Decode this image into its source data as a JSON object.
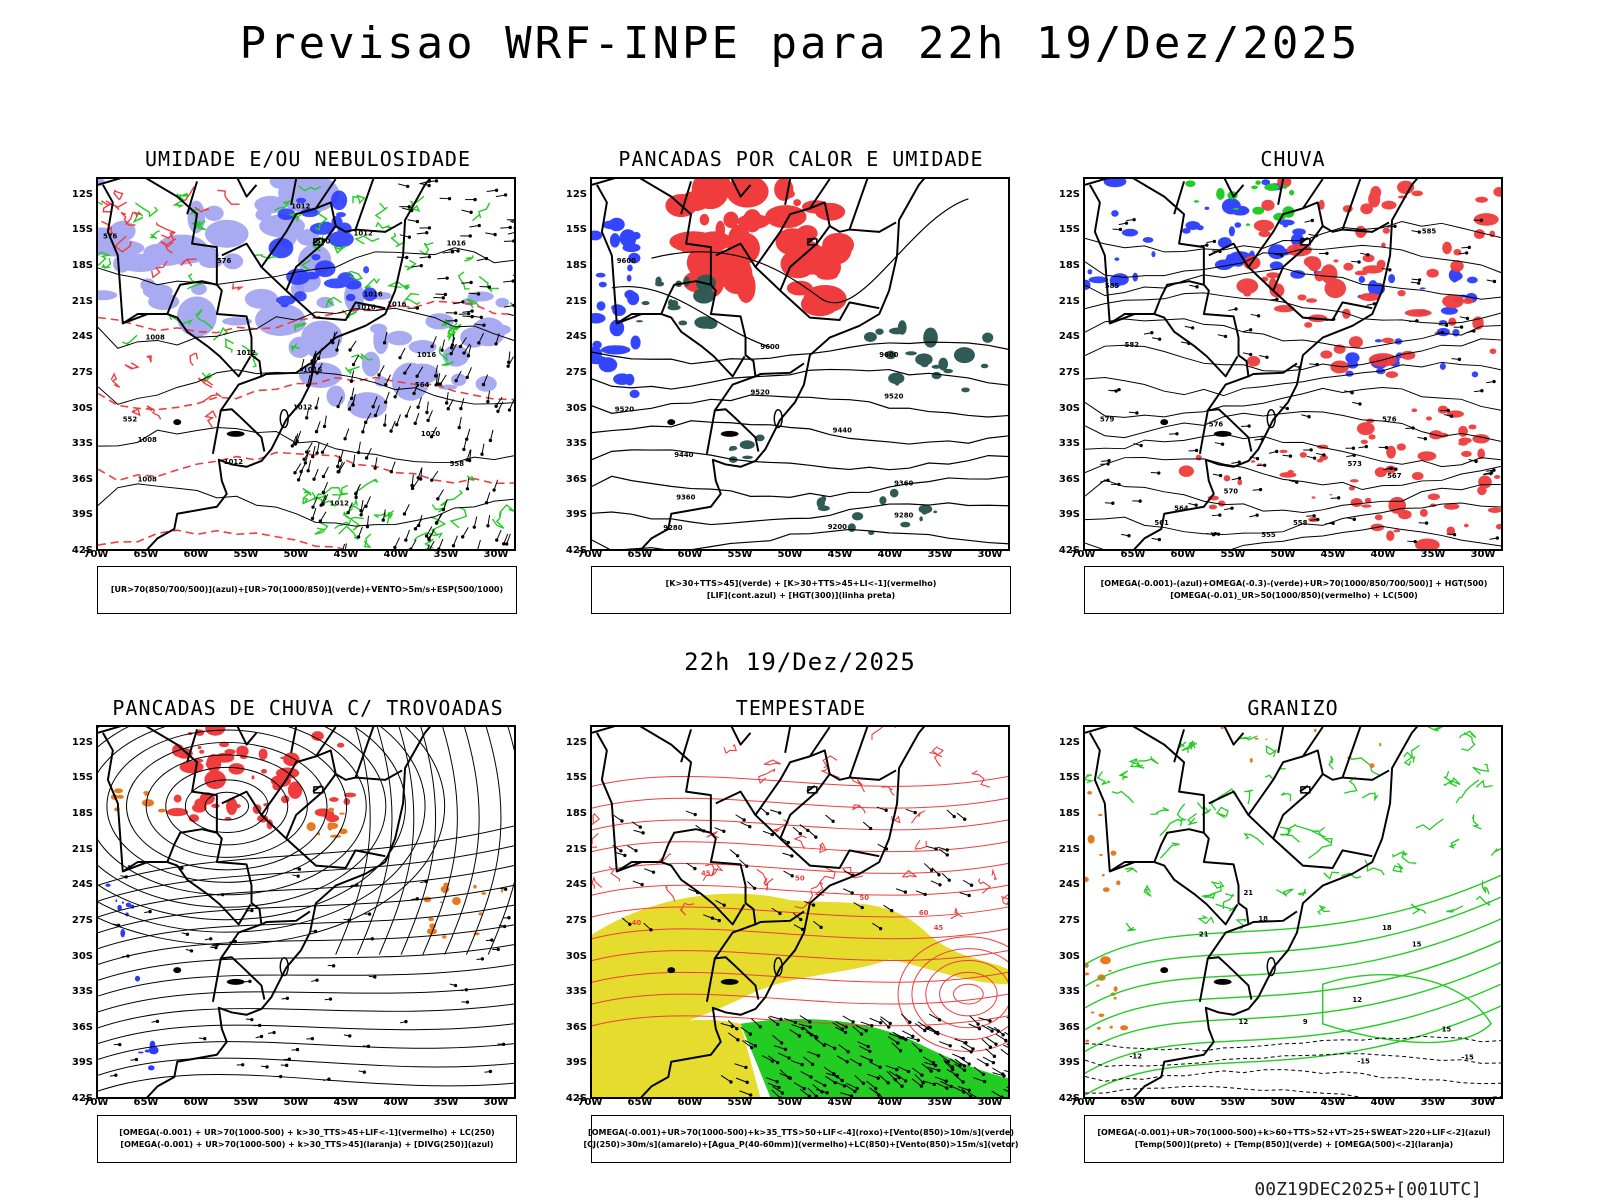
{
  "title": "Previsao WRF-INPE  para 22h 19/Dez/2025",
  "mid_date": "22h 19/Dez/2025",
  "run_stamp": "00Z19DEC2025+[001UTC]",
  "axis": {
    "lat_labels": [
      "12S",
      "15S",
      "18S",
      "21S",
      "24S",
      "27S",
      "30S",
      "33S",
      "36S",
      "39S",
      "42S"
    ],
    "lon_labels": [
      "70W",
      "65W",
      "60W",
      "55W",
      "50W",
      "45W",
      "40W",
      "35W",
      "30W"
    ]
  },
  "colors": {
    "blue": "#2a3cff",
    "lavender": "#9a9cf0",
    "green": "#22cc22",
    "red": "#f03c3c",
    "darkteal": "#2f5a55",
    "orange": "#e87a1e",
    "yellow": "#e6dc2e",
    "black": "#000000"
  },
  "panels": [
    {
      "id": "umidade",
      "title": "UMIDADE E/OU NEBULOSIDADE",
      "legend": [
        "[UR>70(850/700/500)](azul)+[UR>70(1000/850)](verde)+VENTO>5m/s+ESP(500/1000)"
      ],
      "contour_labels": [
        "1012",
        "1012",
        "1016",
        "1016",
        "1016",
        "1008",
        "1012",
        "1016",
        "1016",
        "1020",
        "1012",
        "1008",
        "1008",
        "1012",
        "1012",
        "1016",
        "576",
        "576",
        "570",
        "564",
        "558",
        "552"
      ]
    },
    {
      "id": "pancadas-calor",
      "title": "PANCADAS POR CALOR E UMIDADE",
      "legend": [
        "[K>30+TTS>45](verde) + [K>30+TTS>45+LI<-1](vermelho)",
        "[LIF](cont.azul) + [HGT(300)](linha preta)"
      ],
      "contour_labels": [
        "9600",
        "9520",
        "9600",
        "9520",
        "9520",
        "9600",
        "9440",
        "9440",
        "9360",
        "9360",
        "9280",
        "9280",
        "9200"
      ]
    },
    {
      "id": "chuva",
      "title": "CHUVA",
      "legend": [
        "[OMEGA(-0.001)-(azul)+OMEGA(-0.3)-(verde)+UR>70(1000/850/700/500)] + HGT(500)",
        "[OMEGA(-0.01)_UR>50(1000/850)(vermelho) + LC(500)"
      ],
      "contour_labels": [
        "585",
        "585",
        "582",
        "579",
        "576",
        "576",
        "573",
        "570",
        "567",
        "564",
        "561",
        "558",
        "555"
      ]
    },
    {
      "id": "pancadas-trovoadas",
      "title": "PANCADAS DE CHUVA C/ TROVOADAS",
      "legend": [
        "[OMEGA(-0.001) + UR>70(1000-500) + k>30_TTS>45+LIF<-1](vermelho) + LC(250)",
        "[OMEGA(-0.001) + UR>70(1000-500) + k>30_TTS>45](laranja) + [DIVG(250)](azul)"
      ],
      "contour_labels": []
    },
    {
      "id": "tempestade",
      "title": "TEMPESTADE",
      "legend": [
        "[OMEGA(-0.001)+UR>70(1000-500)+k>35_TTS>50+LIF<-4](roxo)+[Vento(850)>10m/s](verde)",
        "[CJ(250)>30m/s](amarelo)+[Agua_P(40-60mm)](vermelho)+LC(850)+[Vento(850)>15m/s](vetor)"
      ],
      "contour_labels": [
        "40",
        "45",
        "50",
        "60",
        "50",
        "45"
      ]
    },
    {
      "id": "granizo",
      "title": "GRANIZO",
      "legend": [
        "[OMEGA(-0.001)+UR>70(1000-500)+k>60+TTS>52+VT>25+SWEAT>220+LIF<-2](azul)",
        "[Temp(500)](preto) + [Temp(850)](verde) + [OMEGA(500)<-2](laranja)"
      ],
      "contour_labels": [
        "21",
        "21",
        "18",
        "18",
        "15",
        "15",
        "12",
        "12",
        "9",
        "-12",
        "-15",
        "-15"
      ]
    }
  ]
}
